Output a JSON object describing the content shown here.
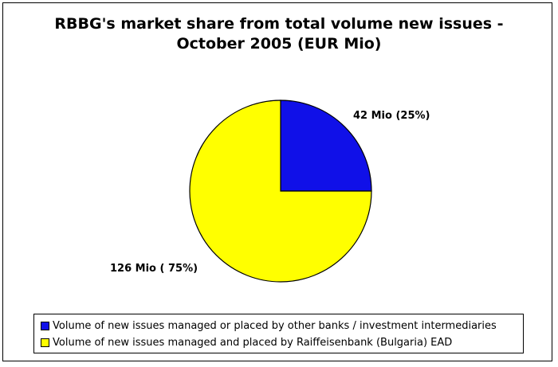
{
  "chart_data": {
    "type": "pie",
    "title": "RBBG's market share from total volume new issues -",
    "subtitle": "October 2005 (EUR Mio)",
    "slices": [
      {
        "name": "Volume of new issues managed or placed by other banks / investment intermediaries",
        "value": 42,
        "percent": 25,
        "label": "42 Mio (25%)",
        "color": "#1010e8"
      },
      {
        "name": "Volume of new issues managed and placed by Raiffeisenbank (Bulgaria) EAD",
        "value": 126,
        "percent": 75,
        "label": "126 Mio ( 75%)",
        "color": "#ffff00"
      }
    ],
    "legend_position": "bottom"
  }
}
